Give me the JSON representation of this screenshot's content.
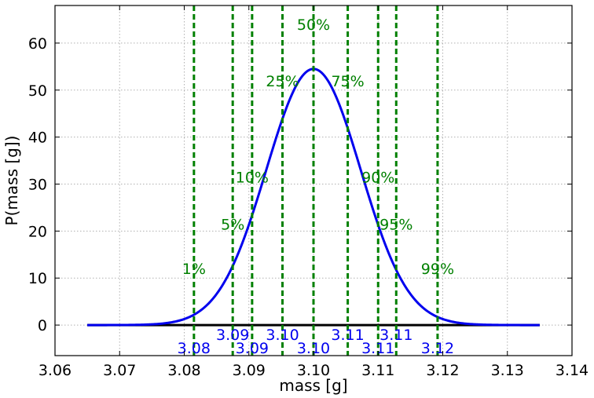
{
  "chart_data": {
    "type": "line",
    "title": "",
    "xlabel": "mass [g]",
    "ylabel": "P(mass [g])",
    "xlim": [
      3.06,
      3.14
    ],
    "ylim": [
      -6.5,
      68
    ],
    "xticks": [
      "3.06",
      "3.07",
      "3.08",
      "3.09",
      "3.10",
      "3.11",
      "3.12",
      "3.13",
      "3.14"
    ],
    "xtick_values": [
      3.06,
      3.07,
      3.08,
      3.09,
      3.1,
      3.11,
      3.12,
      3.13,
      3.14
    ],
    "yticks": [
      "0",
      "10",
      "20",
      "30",
      "40",
      "50",
      "60"
    ],
    "ytick_values": [
      0,
      10,
      20,
      30,
      40,
      50,
      60
    ],
    "grid": true,
    "distribution": {
      "mean": 3.1,
      "sd": 0.0073,
      "peak": 54.5,
      "x_range": [
        3.065,
        3.135
      ],
      "color": "#0000ee"
    },
    "baseline": {
      "y": 0,
      "x_range": [
        3.065,
        3.135
      ],
      "color": "#000000"
    },
    "percentiles": [
      {
        "label": "1%",
        "x": 3.0815,
        "label_y": 12,
        "value_label": "3.08",
        "value_row": "low"
      },
      {
        "label": "5%",
        "x": 3.0875,
        "label_y": 21.5,
        "value_label": "3.09",
        "value_row": "high"
      },
      {
        "label": "10%",
        "x": 3.0905,
        "label_y": 31.5,
        "value_label": "3.09",
        "value_row": "low"
      },
      {
        "label": "25%",
        "x": 3.0952,
        "label_y": 52,
        "value_label": "3.10",
        "value_row": "high"
      },
      {
        "label": "50%",
        "x": 3.1,
        "label_y": 64,
        "value_label": "3.10",
        "value_row": "low"
      },
      {
        "label": "75%",
        "x": 3.1053,
        "label_y": 52,
        "value_label": "3.11",
        "value_row": "high"
      },
      {
        "label": "90%",
        "x": 3.11,
        "label_y": 31.5,
        "value_label": "3.11",
        "value_row": "low"
      },
      {
        "label": "95%",
        "x": 3.1128,
        "label_y": 21.5,
        "value_label": "3.11",
        "value_row": "high"
      },
      {
        "label": "99%",
        "x": 3.1192,
        "label_y": 12,
        "value_label": "3.12",
        "value_row": "low"
      }
    ],
    "percentile_line_color": "#008000"
  }
}
